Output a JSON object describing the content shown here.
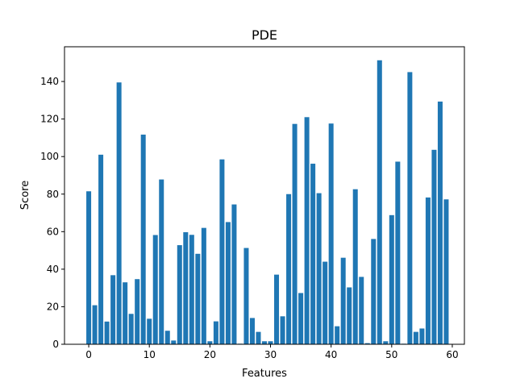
{
  "chart_data": {
    "type": "bar",
    "title": "PDE",
    "xlabel": "Features",
    "ylabel": "Score",
    "x": [
      0,
      1,
      2,
      3,
      4,
      5,
      6,
      7,
      8,
      9,
      10,
      11,
      12,
      13,
      14,
      15,
      16,
      17,
      18,
      19,
      20,
      21,
      22,
      23,
      24,
      25,
      26,
      27,
      28,
      29,
      30,
      31,
      32,
      33,
      34,
      35,
      36,
      37,
      38,
      39,
      40,
      41,
      42,
      43,
      44,
      45,
      46,
      47,
      48,
      49,
      50,
      51,
      52,
      53,
      54,
      55,
      56,
      57,
      58,
      59
    ],
    "values": [
      81.5,
      20.8,
      101,
      12.1,
      36.8,
      139.5,
      33,
      16.2,
      34.7,
      111.7,
      13.6,
      58.2,
      87.8,
      7.2,
      2,
      52.8,
      59.7,
      58.3,
      48.2,
      62,
      1.6,
      12.2,
      98.5,
      65.1,
      74.5,
      0.3,
      51.3,
      14,
      6.6,
      1.6,
      1.6,
      37.1,
      14.9,
      80,
      117.4,
      27.3,
      121,
      96.2,
      80.5,
      44,
      117.6,
      9.6,
      46.1,
      30.3,
      82.6,
      35.9,
      0.6,
      56.1,
      151.3,
      1.6,
      68.8,
      97.3,
      0.3,
      145,
      6.6,
      8.4,
      78.2,
      103.6,
      129.3,
      77.2
    ],
    "color": "#1f77b4",
    "xlim": [
      -4,
      62
    ],
    "ylim": [
      0,
      158.5
    ],
    "xticks": [
      0,
      10,
      20,
      30,
      40,
      50,
      60
    ],
    "xtick_labels": [
      "0",
      "10",
      "20",
      "30",
      "40",
      "50",
      "60"
    ],
    "yticks": [
      0,
      20,
      40,
      60,
      80,
      100,
      120,
      140
    ],
    "ytick_labels": [
      "0",
      "20",
      "40",
      "60",
      "80",
      "100",
      "120",
      "140"
    ],
    "grid": false,
    "legend": false
  }
}
